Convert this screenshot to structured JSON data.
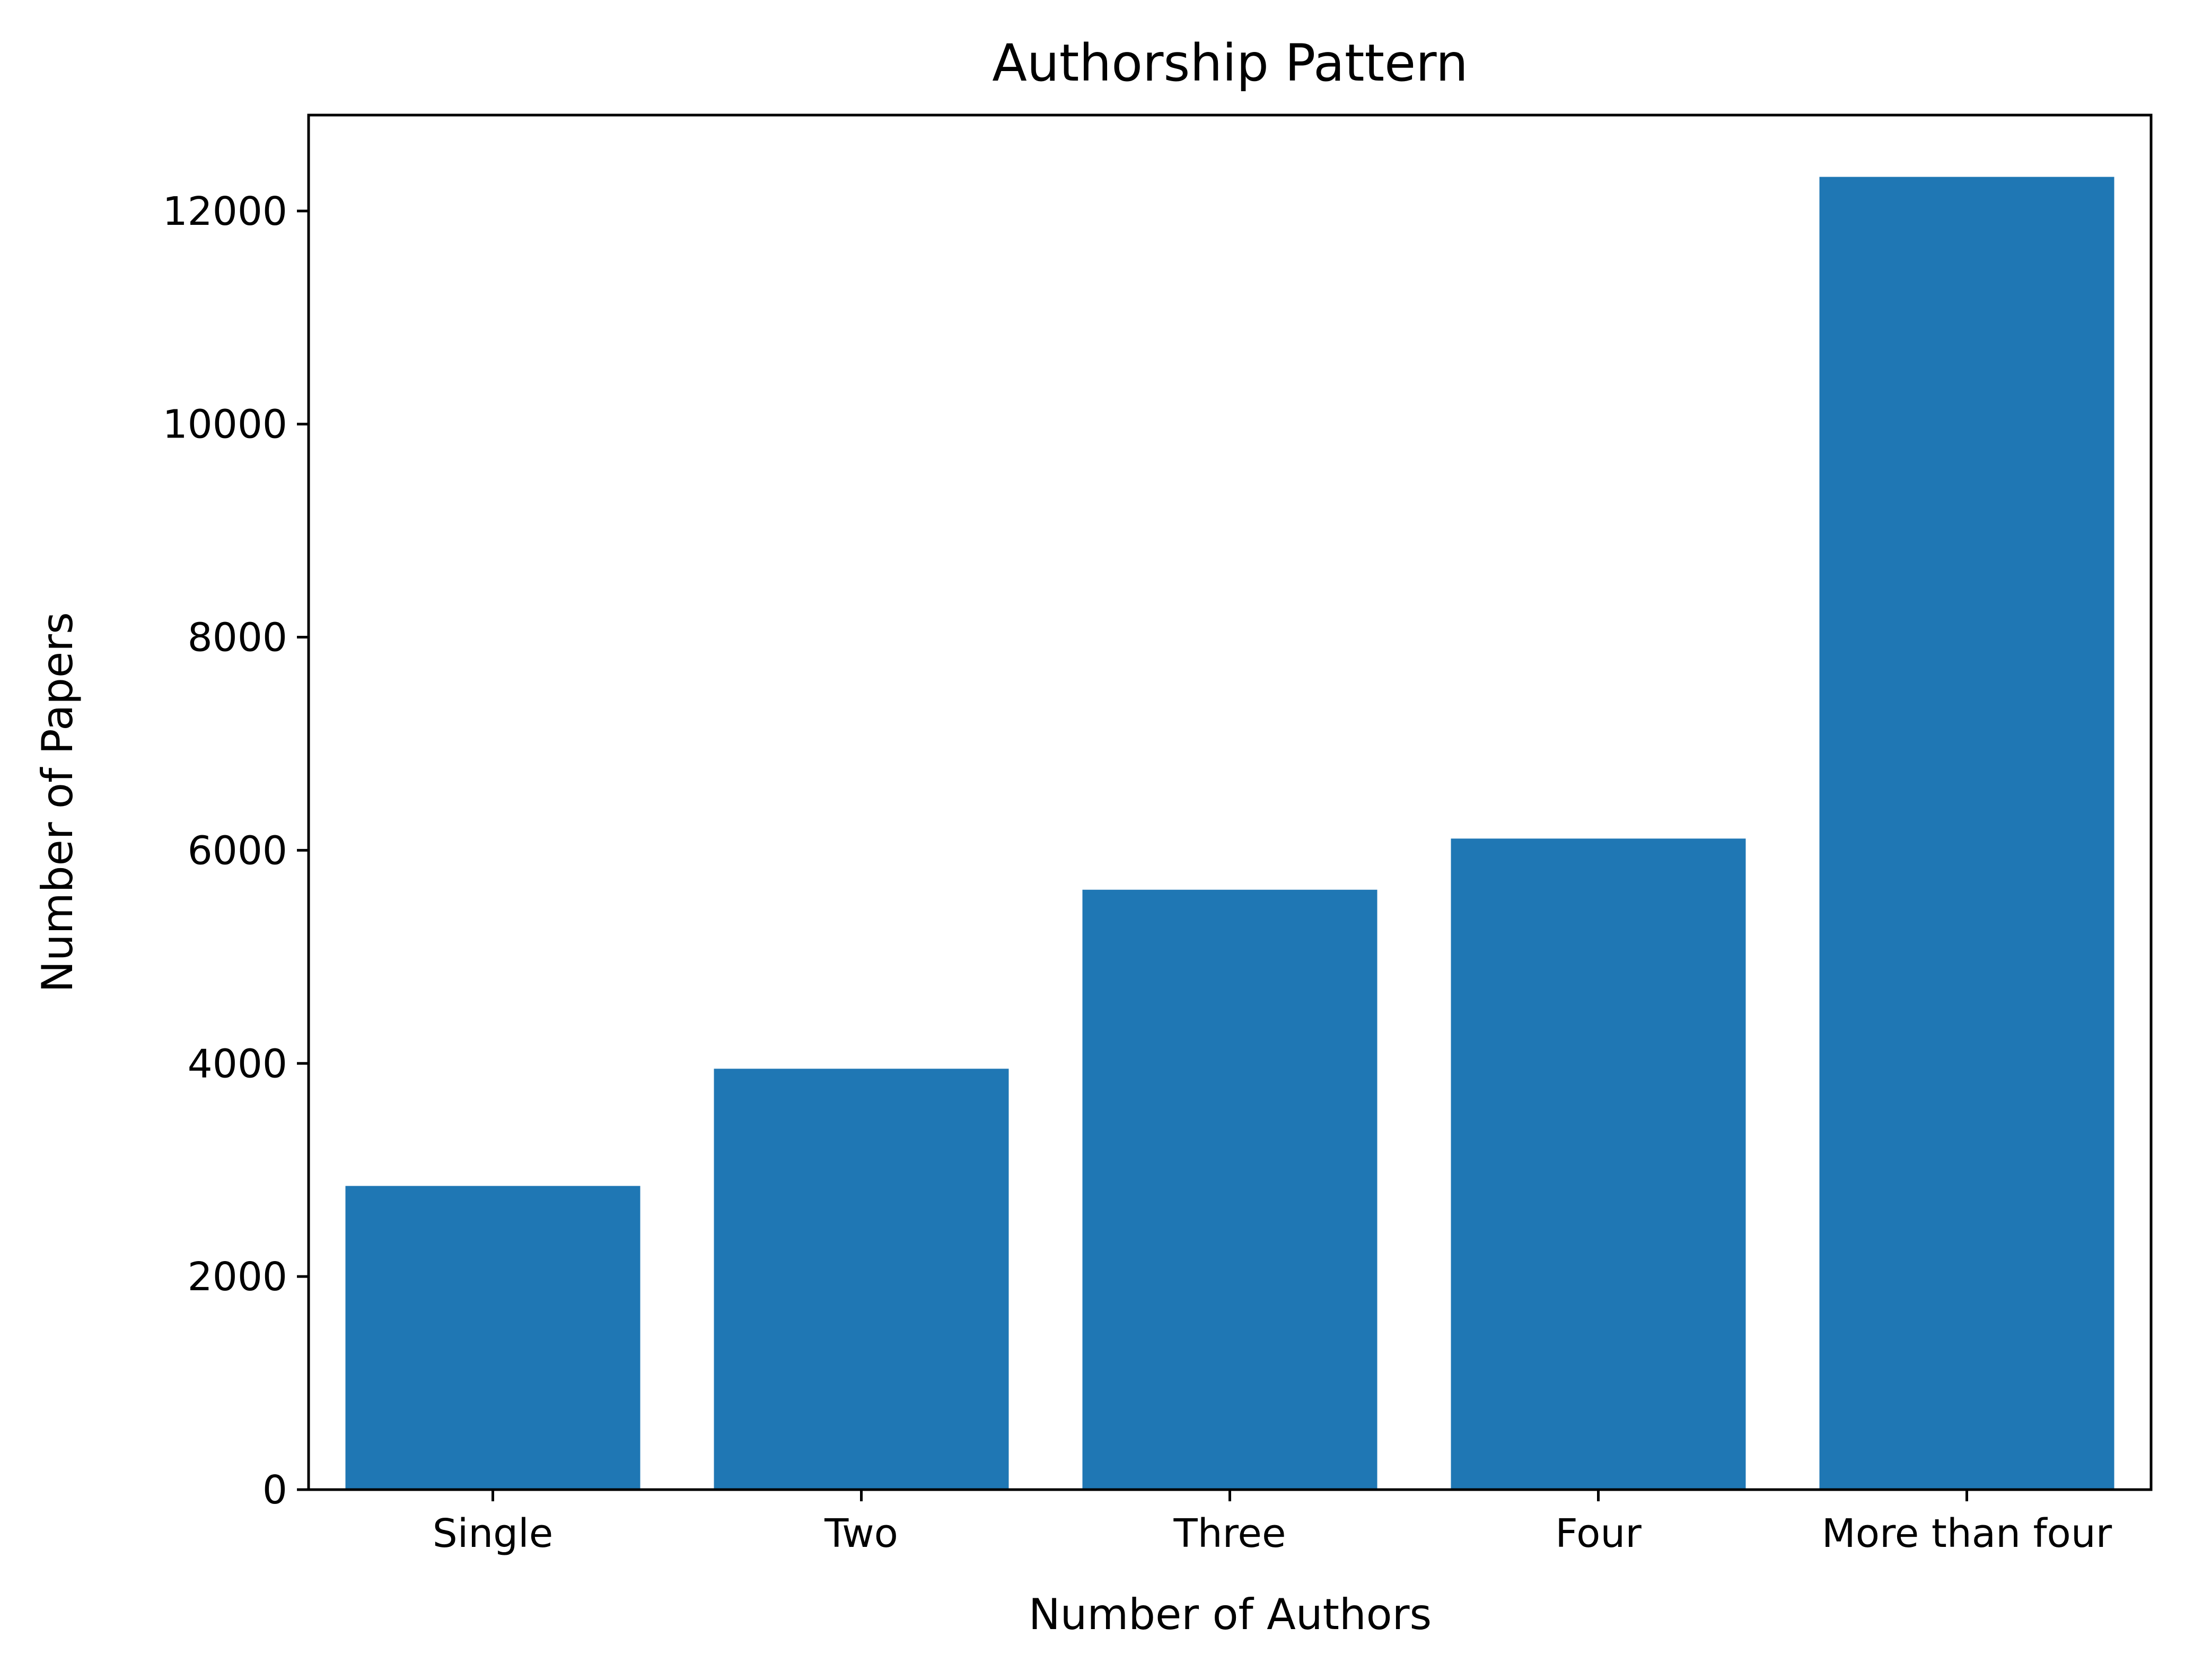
{
  "chart_data": {
    "type": "bar",
    "title": "Authorship Pattern",
    "xlabel": "Number of Authors",
    "ylabel": "Number of Papers",
    "categories": [
      "Single",
      "Two",
      "Three",
      "Four",
      "More than four"
    ],
    "values": [
      2850,
      3950,
      5630,
      6110,
      12320
    ],
    "ylim": [
      0,
      12900
    ],
    "yticks": [
      "0",
      "2000",
      "4000",
      "6000",
      "8000",
      "10000",
      "12000"
    ],
    "bar_color": "#1f77b4",
    "grid": false,
    "legend": false
  }
}
